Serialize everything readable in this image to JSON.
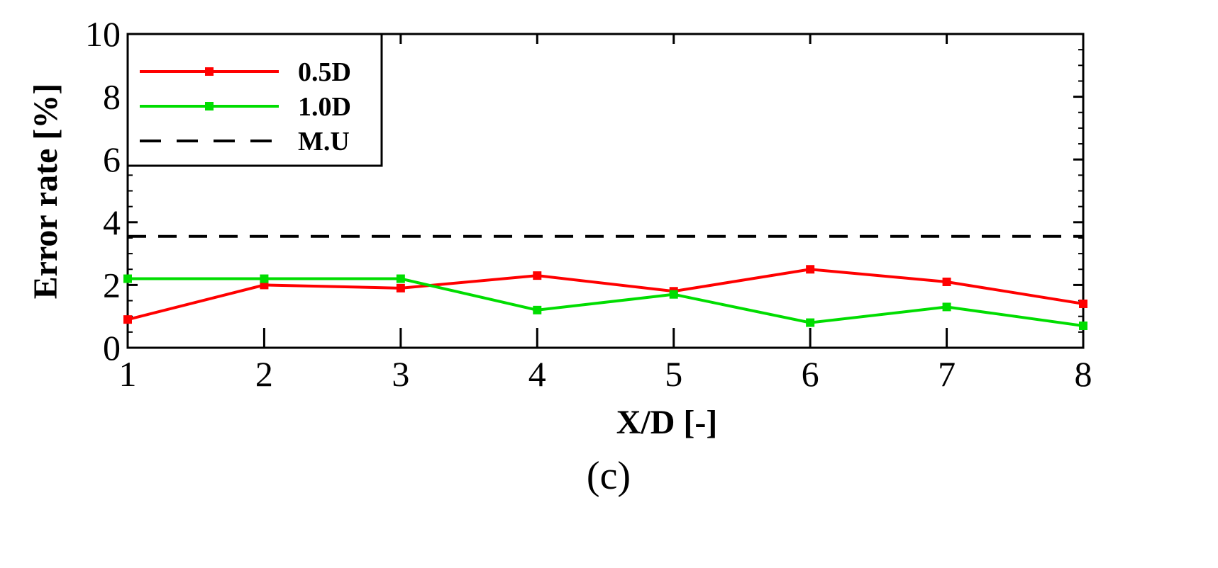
{
  "chart_data": {
    "type": "line",
    "xlabel": "X/D [-]",
    "ylabel": "Error rate [%]",
    "xlim": [
      1,
      8
    ],
    "ylim": [
      0,
      10
    ],
    "x_ticks": [
      "1",
      "2",
      "3",
      "4",
      "5",
      "6",
      "7",
      "8"
    ],
    "y_ticks": [
      "0",
      "2",
      "4",
      "6",
      "8",
      "10"
    ],
    "x": [
      1,
      2,
      3,
      4,
      5,
      6,
      7,
      8
    ],
    "series": [
      {
        "name": "0.5D",
        "color": "#ff0000",
        "marker": "square",
        "style": "solid",
        "values": [
          0.9,
          2.0,
          1.9,
          2.3,
          1.8,
          2.5,
          2.1,
          1.4
        ]
      },
      {
        "name": "1.0D",
        "color": "#00dd00",
        "marker": "square",
        "style": "solid",
        "values": [
          2.2,
          2.2,
          2.2,
          1.2,
          1.7,
          0.8,
          1.3,
          0.7
        ]
      },
      {
        "name": "M.U",
        "color": "#000000",
        "marker": "none",
        "style": "dashed",
        "values": [
          3.55,
          3.55,
          3.55,
          3.55,
          3.55,
          3.55,
          3.55,
          3.55
        ]
      }
    ],
    "legend_position": "top-left",
    "grid": false
  },
  "caption": "(c)"
}
